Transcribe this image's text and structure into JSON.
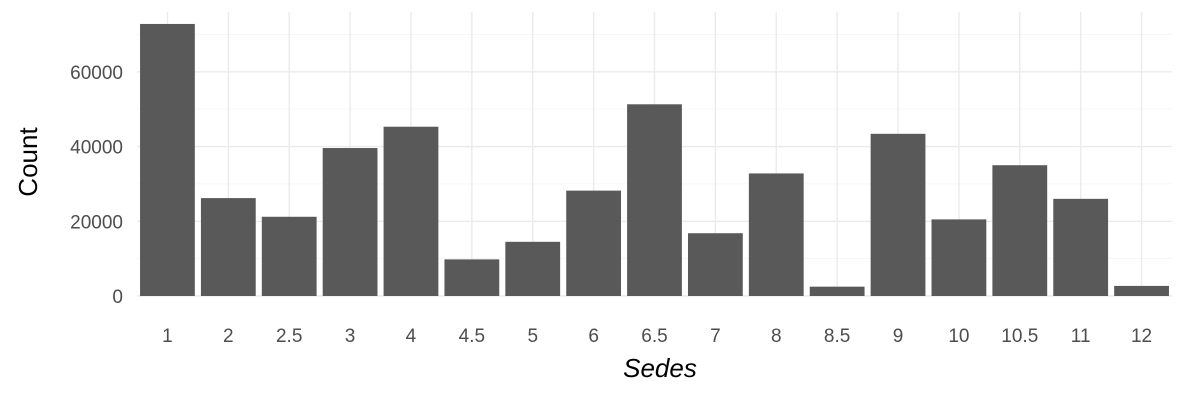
{
  "chart_data": {
    "type": "bar",
    "categories": [
      "1",
      "2",
      "2.5",
      "3",
      "4",
      "4.5",
      "5",
      "6",
      "6.5",
      "7",
      "8",
      "8.5",
      "9",
      "10",
      "10.5",
      "11",
      "12"
    ],
    "values": [
      72800,
      26200,
      21200,
      39600,
      45300,
      9800,
      14500,
      28200,
      51300,
      16800,
      32800,
      2500,
      43400,
      20500,
      35000,
      26000,
      2700
    ],
    "xlabel": "Sedes",
    "ylabel": "Count",
    "ylim": [
      0,
      76000
    ],
    "yticks": [
      0,
      20000,
      40000,
      60000
    ],
    "ytick_labels": [
      "0",
      "20000",
      "40000",
      "60000"
    ],
    "grid": true,
    "bar_color": "#595959",
    "grid_color": "#ebebeb",
    "background": "#ffffff"
  }
}
